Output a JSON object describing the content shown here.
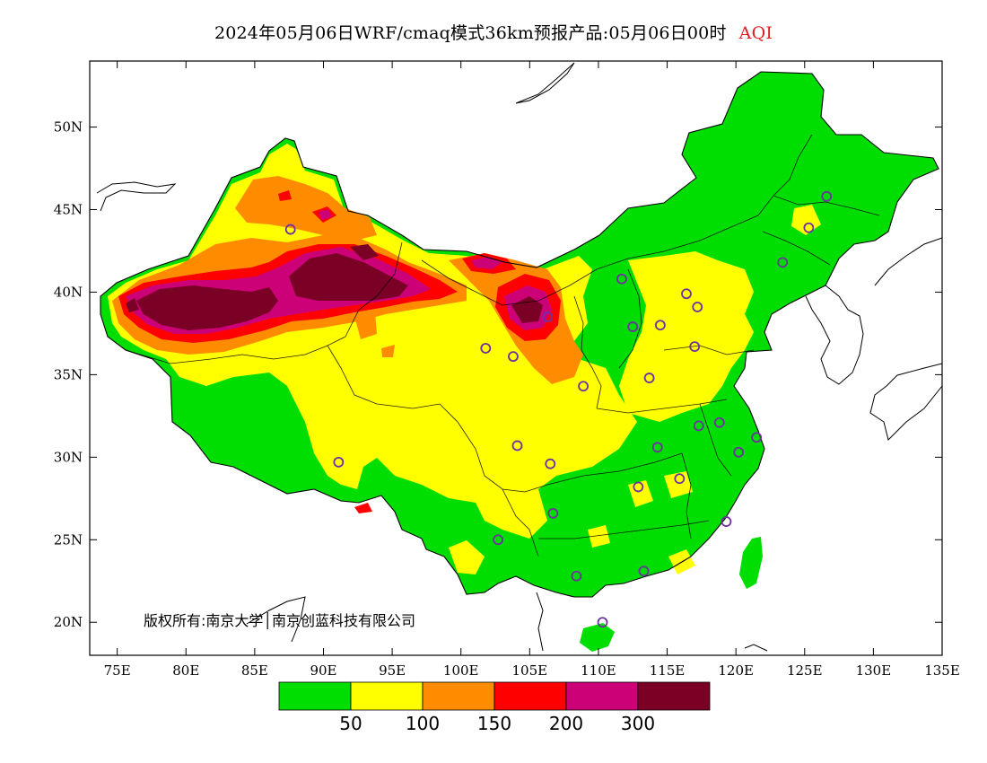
{
  "title": {
    "text": "2024年05月06日WRF/cmaq模式36km预报产品:05月06日00时",
    "variable": "AQI"
  },
  "copyright": "版权所有:南京大学│南京创蓝科技有限公司",
  "axes": {
    "lon_range": [
      73,
      135
    ],
    "lat_range": [
      18,
      54
    ],
    "x_ticks": [
      "75E",
      "80E",
      "85E",
      "90E",
      "95E",
      "100E",
      "105E",
      "110E",
      "115E",
      "120E",
      "125E",
      "130E",
      "135E"
    ],
    "x_values": [
      75,
      80,
      85,
      90,
      95,
      100,
      105,
      110,
      115,
      120,
      125,
      130,
      135
    ],
    "y_ticks": [
      "20N",
      "25N",
      "30N",
      "35N",
      "40N",
      "45N",
      "50N"
    ],
    "y_values": [
      20,
      25,
      30,
      35,
      40,
      45,
      50
    ]
  },
  "colorbar": {
    "colors": [
      "#00dd00",
      "#ffff00",
      "#ff8c00",
      "#ff0000",
      "#cc0077",
      "#7a0026"
    ],
    "labels": [
      "50",
      "100",
      "150",
      "200",
      "300"
    ]
  },
  "colors": {
    "good": "#00dd00",
    "moderate": "#ffff00",
    "usg": "#ff8c00",
    "unhealthy": "#ff0000",
    "very_unhealthy": "#cc0077",
    "hazardous": "#7a0026",
    "station_marker": "#7030a0"
  },
  "stations": [
    {
      "lon": 87.6,
      "lat": 43.8
    },
    {
      "lon": 91.1,
      "lat": 29.7
    },
    {
      "lon": 101.8,
      "lat": 36.6
    },
    {
      "lon": 103.8,
      "lat": 36.1
    },
    {
      "lon": 106.3,
      "lat": 38.5
    },
    {
      "lon": 111.7,
      "lat": 40.8
    },
    {
      "lon": 116.4,
      "lat": 39.9
    },
    {
      "lon": 117.2,
      "lat": 39.1
    },
    {
      "lon": 114.5,
      "lat": 38.0
    },
    {
      "lon": 112.5,
      "lat": 37.9
    },
    {
      "lon": 108.9,
      "lat": 34.3
    },
    {
      "lon": 113.7,
      "lat": 34.8
    },
    {
      "lon": 117.0,
      "lat": 36.7
    },
    {
      "lon": 117.3,
      "lat": 31.9
    },
    {
      "lon": 118.8,
      "lat": 32.1
    },
    {
      "lon": 121.5,
      "lat": 31.2
    },
    {
      "lon": 120.2,
      "lat": 30.3
    },
    {
      "lon": 114.3,
      "lat": 30.6
    },
    {
      "lon": 112.9,
      "lat": 28.2
    },
    {
      "lon": 115.9,
      "lat": 28.7
    },
    {
      "lon": 119.3,
      "lat": 26.1
    },
    {
      "lon": 113.3,
      "lat": 23.1
    },
    {
      "lon": 108.4,
      "lat": 22.8
    },
    {
      "lon": 110.3,
      "lat": 20.0
    },
    {
      "lon": 102.7,
      "lat": 25.0
    },
    {
      "lon": 106.7,
      "lat": 26.6
    },
    {
      "lon": 106.5,
      "lat": 29.6
    },
    {
      "lon": 104.1,
      "lat": 30.7
    },
    {
      "lon": 123.4,
      "lat": 41.8
    },
    {
      "lon": 125.3,
      "lat": 43.9
    },
    {
      "lon": 126.6,
      "lat": 45.8
    }
  ]
}
